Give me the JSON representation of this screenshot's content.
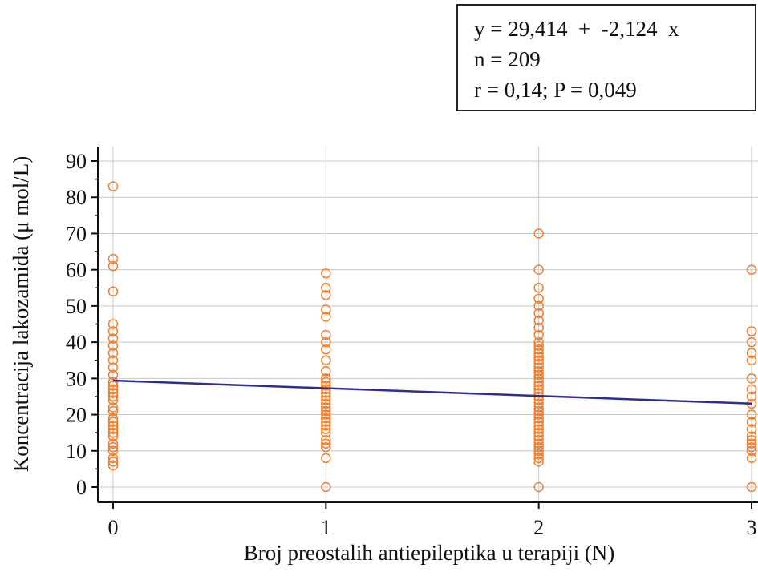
{
  "stats_box": {
    "equation": "y = 29,414  +  -2,124  x",
    "n": "n = 209",
    "r_p": "r = 0,14; P = 0,049"
  },
  "colors": {
    "points": "#f07f2e",
    "regression_line": "#2e2e8f",
    "grid": "#c8c8c8",
    "axis": "#111111"
  },
  "chart_data": {
    "type": "scatter",
    "xlabel": "Broj preostalih antiepileptika u terapiji (N)",
    "ylabel": "Koncentracija lakozamida (μ mol/L)",
    "x_ticks": [
      0,
      1,
      2,
      3
    ],
    "y_ticks": [
      0,
      10,
      20,
      30,
      40,
      50,
      60,
      70,
      80,
      90
    ],
    "xlim": [
      0,
      3
    ],
    "ylim": [
      0,
      90
    ],
    "grid": true,
    "regression": {
      "intercept": 29.414,
      "slope": -2.124
    },
    "series": [
      {
        "x": 0,
        "y": [
          83,
          63,
          61,
          54,
          45,
          43,
          41,
          39,
          37,
          35,
          33,
          31,
          29,
          28,
          27,
          26,
          25,
          24,
          22,
          21,
          19,
          18,
          17,
          16,
          15,
          14,
          12,
          11,
          10,
          8,
          7,
          6
        ]
      },
      {
        "x": 1,
        "y": [
          59,
          55,
          53,
          49,
          47,
          42,
          40,
          38,
          35,
          32,
          30,
          29,
          28,
          27,
          26,
          25,
          24,
          23,
          22,
          21,
          20,
          19,
          18,
          17,
          16,
          15,
          13,
          12,
          11,
          8,
          0
        ]
      },
      {
        "x": 2,
        "y": [
          70,
          60,
          55,
          52,
          50,
          48,
          46,
          44,
          42,
          40,
          39,
          38,
          37,
          36,
          35,
          34,
          33,
          32,
          31,
          30,
          29,
          28,
          27,
          26,
          25,
          24,
          23,
          22,
          21,
          20,
          19,
          18,
          17,
          16,
          15,
          14,
          13,
          12,
          11,
          10,
          9,
          8,
          7,
          0
        ]
      },
      {
        "x": 3,
        "y": [
          60,
          43,
          40,
          37,
          35,
          30,
          27,
          25,
          23,
          20,
          18,
          16,
          14,
          13,
          12,
          11,
          10,
          8,
          0
        ]
      }
    ]
  }
}
